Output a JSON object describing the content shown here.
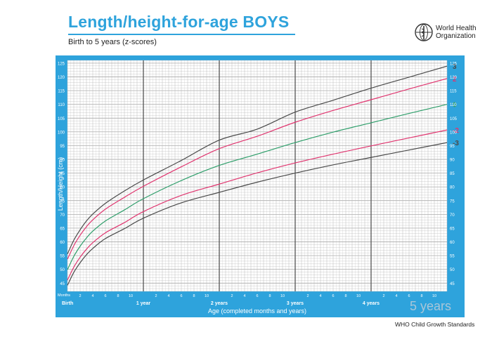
{
  "header": {
    "title": "Length/height-for-age BOYS",
    "subtitle": "Birth to 5 years (z-scores)"
  },
  "organization": {
    "name_line1": "World Health",
    "name_line2": "Organization"
  },
  "footer": {
    "standards": "WHO Child Growth Standards"
  },
  "watermark": "5 years",
  "colors": {
    "frame": "#2ea3dc",
    "grid": "#b9b9b9",
    "z3": "#4a4a4a",
    "z2": "#e0356f",
    "z0": "#2e9e6a"
  },
  "chart_data": {
    "type": "line",
    "title": "Length/height-for-age BOYS",
    "subtitle": "Birth to 5 years (z-scores)",
    "xlabel": "Age (completed months and years)",
    "ylabel": "Length/Height (cm)",
    "xlim": [
      0,
      60
    ],
    "ylim": [
      42,
      126
    ],
    "y_ticks": [
      45,
      50,
      55,
      60,
      65,
      70,
      75,
      80,
      85,
      90,
      95,
      100,
      105,
      110,
      115,
      120,
      125
    ],
    "months_label": "Months",
    "month_tick_labels": [
      "2",
      "4",
      "6",
      "8",
      "10"
    ],
    "year_labels": [
      {
        "month": 0,
        "label": "Birth"
      },
      {
        "month": 12,
        "label": "1 year"
      },
      {
        "month": 24,
        "label": "2 years"
      },
      {
        "month": 36,
        "label": "3 years"
      },
      {
        "month": 48,
        "label": "4 years"
      }
    ],
    "grid": true,
    "x": [
      0,
      1,
      2,
      3,
      4,
      6,
      9,
      12,
      18,
      24,
      30,
      36,
      42,
      48,
      54,
      60
    ],
    "series": [
      {
        "name": "3",
        "color": "#4a4a4a",
        "values": [
          55.6,
          60.6,
          64.4,
          67.6,
          70.1,
          74.0,
          78.5,
          82.5,
          89.6,
          97.0,
          101.0,
          107.2,
          111.5,
          115.9,
          119.9,
          123.9
        ]
      },
      {
        "name": "2",
        "color": "#e0356f",
        "values": [
          53.7,
          58.6,
          62.4,
          65.5,
          68.0,
          71.9,
          76.2,
          80.2,
          87.3,
          93.9,
          98.4,
          103.5,
          107.8,
          111.7,
          115.6,
          119.4
        ]
      },
      {
        "name": "0",
        "color": "#2e9e6a",
        "values": [
          49.9,
          54.7,
          58.4,
          61.4,
          63.9,
          67.6,
          71.6,
          75.7,
          82.3,
          87.8,
          91.9,
          96.1,
          99.9,
          103.3,
          106.7,
          110.0
        ]
      },
      {
        "name": "-2",
        "color": "#e0356f",
        "values": [
          46.1,
          50.8,
          54.4,
          57.3,
          59.7,
          63.3,
          67.0,
          71.0,
          76.9,
          81.0,
          85.1,
          88.7,
          91.9,
          94.9,
          97.8,
          100.7
        ]
      },
      {
        "name": "-3",
        "color": "#4a4a4a",
        "values": [
          44.2,
          48.9,
          52.4,
          55.3,
          57.6,
          61.2,
          64.8,
          68.6,
          74.2,
          78.0,
          81.7,
          85.0,
          88.0,
          90.7,
          93.4,
          96.1
        ]
      }
    ]
  }
}
